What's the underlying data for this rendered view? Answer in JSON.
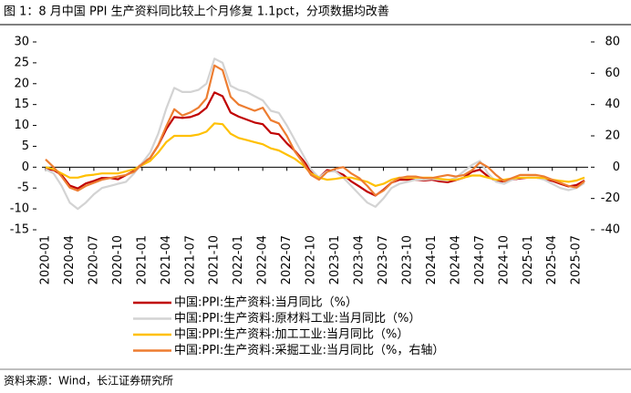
{
  "chart_data": {
    "type": "line",
    "title": "图 1：8 月中国 PPI 生产资料同比较上个月修复 1.1pct，分项数据均改善",
    "source": "资料来源：Wind，长江证券研究所",
    "categories": [
      "2020-01",
      "2020-02",
      "2020-03",
      "2020-04",
      "2020-05",
      "2020-06",
      "2020-07",
      "2020-08",
      "2020-09",
      "2020-10",
      "2020-11",
      "2020-12",
      "2021-01",
      "2021-02",
      "2021-03",
      "2021-04",
      "2021-05",
      "2021-06",
      "2021-07",
      "2021-08",
      "2021-09",
      "2021-10",
      "2021-11",
      "2021-12",
      "2022-01",
      "2022-02",
      "2022-03",
      "2022-04",
      "2022-05",
      "2022-06",
      "2022-07",
      "2022-08",
      "2022-09",
      "2022-10",
      "2022-11",
      "2022-12",
      "2023-01",
      "2023-02",
      "2023-03",
      "2023-04",
      "2023-05",
      "2023-06",
      "2023-07",
      "2023-08",
      "2023-09",
      "2023-10",
      "2023-11",
      "2023-12",
      "2024-01",
      "2024-02",
      "2024-03",
      "2024-04",
      "2024-05",
      "2024-06",
      "2024-07",
      "2024-08",
      "2024-09",
      "2024-10",
      "2024-11",
      "2024-12",
      "2025-01",
      "2025-02",
      "2025-03",
      "2025-04",
      "2025-05",
      "2025-06",
      "2025-07",
      "2025-08"
    ],
    "series": [
      {
        "name": "中国:PPI:生产资料:当月同比（%）",
        "color": "#c00000",
        "values": [
          -0.4,
          -0.7,
          -1.9,
          -4.4,
          -5.1,
          -3.9,
          -3.3,
          -2.6,
          -2.6,
          -2.9,
          -1.9,
          -0.9,
          0.9,
          2.2,
          5.2,
          9.1,
          12.0,
          11.8,
          12.0,
          12.7,
          14.2,
          17.9,
          17.0,
          13.1,
          12.1,
          11.4,
          10.7,
          10.3,
          8.2,
          7.9,
          5.7,
          3.9,
          1.7,
          -0.9,
          -2.5,
          -0.7,
          -1.0,
          -1.8,
          -3.4,
          -4.6,
          -5.9,
          -6.8,
          -5.4,
          -3.7,
          -3.0,
          -3.0,
          -3.0,
          -3.2,
          -3.0,
          -3.4,
          -3.6,
          -3.1,
          -2.5,
          -1.1,
          -0.6,
          -2.2,
          -3.3,
          -3.4,
          -3.0,
          -2.7,
          -2.5,
          -2.5,
          -2.8,
          -3.3,
          -4.0,
          -4.6,
          -4.3,
          -3.2
        ]
      },
      {
        "name": "中国:PPI:生产资料:原材料工业:当月同比（%）",
        "color": "#d3d3d3",
        "values": [
          -0.5,
          -1.5,
          -4.5,
          -8.5,
          -10.0,
          -8.5,
          -6.5,
          -5.0,
          -4.5,
          -4.0,
          -3.5,
          -1.5,
          1.0,
          3.5,
          8.0,
          14.0,
          19.0,
          18.0,
          18.0,
          18.5,
          20.0,
          26.0,
          25.0,
          19.5,
          18.5,
          18.0,
          17.0,
          16.0,
          13.5,
          13.0,
          10.0,
          6.5,
          3.0,
          -0.5,
          -2.5,
          -1.0,
          -1.0,
          -2.5,
          -4.5,
          -6.5,
          -8.5,
          -9.5,
          -7.5,
          -5.0,
          -4.0,
          -3.5,
          -3.0,
          -3.0,
          -2.8,
          -3.0,
          -3.2,
          -2.5,
          -1.0,
          0.5,
          1.5,
          -1.5,
          -3.5,
          -4.0,
          -3.0,
          -2.5,
          -2.5,
          -2.5,
          -3.0,
          -4.0,
          -5.0,
          -5.5,
          -5.0,
          -3.8
        ]
      },
      {
        "name": "中国:PPI:生产资料:加工工业:当月同比（%）",
        "color": "#ffc000",
        "values": [
          0.0,
          -0.5,
          -1.5,
          -2.5,
          -2.5,
          -2.0,
          -1.8,
          -1.5,
          -1.5,
          -1.5,
          -1.0,
          -0.5,
          0.5,
          1.5,
          3.5,
          6.0,
          7.5,
          7.5,
          7.5,
          7.8,
          8.5,
          10.5,
          10.3,
          8.0,
          7.0,
          6.5,
          6.0,
          5.5,
          4.5,
          4.0,
          3.0,
          2.0,
          0.5,
          -1.5,
          -2.5,
          -3.0,
          -2.8,
          -2.5,
          -2.5,
          -3.0,
          -3.5,
          -4.5,
          -4.0,
          -3.0,
          -2.5,
          -2.5,
          -2.5,
          -2.5,
          -2.5,
          -2.8,
          -3.0,
          -3.0,
          -2.5,
          -2.0,
          -2.0,
          -2.5,
          -3.0,
          -3.0,
          -2.7,
          -2.5,
          -2.5,
          -2.5,
          -2.6,
          -3.0,
          -3.3,
          -3.5,
          -3.2,
          -2.5
        ]
      },
      {
        "name": "中国:PPI:生产资料:采掘工业:当月同比（%，右轴）",
        "color": "#ed7d31",
        "axis": "y2",
        "values": [
          5,
          0,
          -6,
          -13,
          -15,
          -12,
          -10,
          -8,
          -7,
          -6,
          -5,
          -3,
          2,
          6,
          14,
          26,
          37,
          33,
          35,
          38,
          44,
          65,
          62,
          45,
          40,
          38,
          36,
          38,
          30,
          28,
          20,
          10,
          3,
          -5,
          -8,
          -3,
          -1,
          0,
          -4,
          -7,
          -12,
          -18,
          -15,
          -10,
          -7,
          -6,
          -6,
          -7,
          -7,
          -6,
          -5,
          -6,
          -5,
          -2,
          3,
          0,
          -5,
          -9,
          -7,
          -5,
          -5,
          -5,
          -6,
          -8,
          -10,
          -12,
          -13,
          -9
        ]
      }
    ],
    "ylim": [
      -15,
      30
    ],
    "yticks": [
      -15,
      -10,
      -5,
      0,
      5,
      10,
      15,
      20,
      25,
      30
    ],
    "y2lim": [
      -40,
      80
    ],
    "y2ticks": [
      -40,
      -20,
      0,
      20,
      40,
      60,
      80
    ]
  }
}
